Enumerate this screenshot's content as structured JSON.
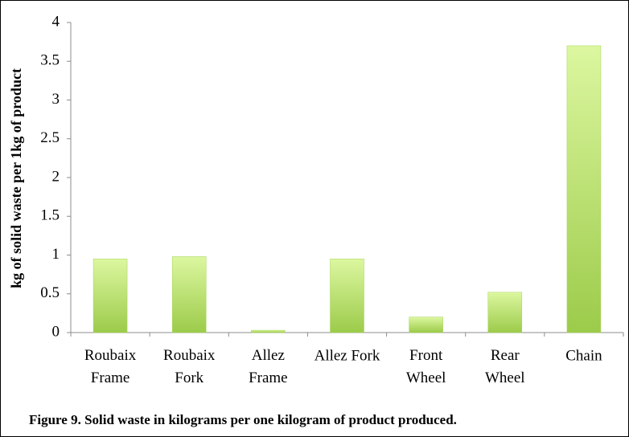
{
  "chart_data": {
    "type": "bar",
    "caption": "Figure 9. Solid waste in kilograms per one kilogram of product produced.",
    "y_label": "kg of  solid waste  per 1kg of  product",
    "categories": [
      "Roubaix\nFrame",
      "Roubaix\nFork",
      "Allez\nFrame",
      "Allez Fork",
      "Front\nWheel",
      "Rear\nWheel",
      "Chain"
    ],
    "values": [
      0.95,
      0.98,
      0.03,
      0.95,
      0.2,
      0.52,
      3.7
    ],
    "color": "#a6d35a",
    "ylim": [
      0,
      4
    ],
    "yticks": [
      0,
      0.5,
      1,
      1.5,
      2,
      2.5,
      3,
      3.5,
      4
    ],
    "grid": false
  }
}
